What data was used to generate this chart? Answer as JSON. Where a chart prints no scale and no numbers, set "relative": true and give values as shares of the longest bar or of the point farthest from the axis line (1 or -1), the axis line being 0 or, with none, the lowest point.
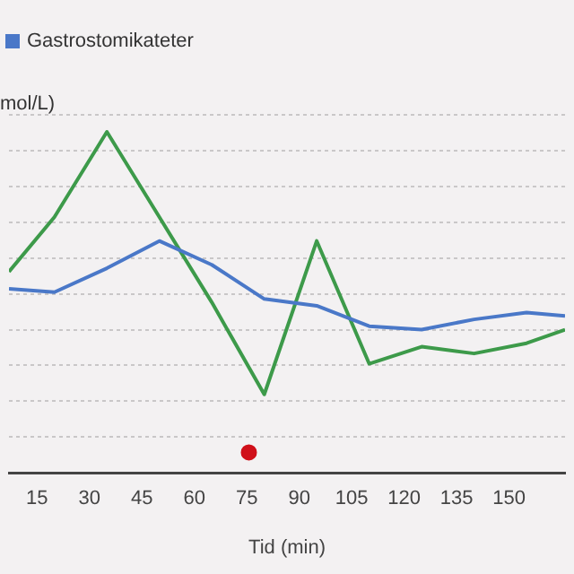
{
  "chart_data": {
    "type": "line",
    "ylabel": "mol/L)",
    "xlabel": "Tid (min)",
    "relative": true,
    "legend": "top left",
    "grid": "y",
    "tick_labels": "x",
    "marker": "none",
    "line_style": "solid",
    "x": [
      7,
      20,
      35,
      50,
      65,
      80,
      95,
      110,
      125,
      140,
      155,
      166
    ],
    "xlim": [
      7,
      166
    ],
    "xticks": [
      15,
      30,
      45,
      60,
      75,
      90,
      105,
      120,
      135,
      150
    ],
    "series": [
      {
        "name": "Gastrostomikateter",
        "color": "#4a78c8",
        "values": [
          0.54,
          0.53,
          0.6,
          0.68,
          0.61,
          0.51,
          0.49,
          0.43,
          0.42,
          0.45,
          0.47,
          0.46
        ]
      },
      {
        "color": "#3d9a4a",
        "values": [
          0.59,
          0.75,
          1,
          0.75,
          0.5,
          0.23,
          0.68,
          0.32,
          0.37,
          0.35,
          0.38,
          0.42
        ]
      },
      {
        "type": "scatter",
        "marker": "circle",
        "color": "#d0101a",
        "x": [
          75.6
        ],
        "values": [
          0.06
        ]
      }
    ]
  }
}
